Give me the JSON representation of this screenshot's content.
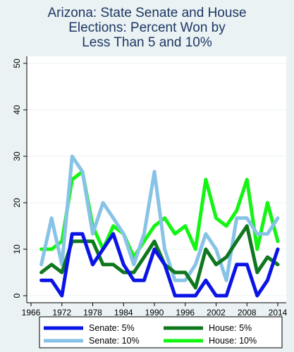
{
  "title_lines": [
    "Arizona: State Senate and House",
    "Elections: Percent Won by",
    "Less Than 5 and 10%"
  ],
  "chart_data": {
    "type": "line",
    "title": "Arizona: State Senate and House Elections: Percent Won by Less Than 5 and 10%",
    "xlabel": "",
    "ylabel": "",
    "xlim": [
      1966,
      2014
    ],
    "ylim": [
      0,
      50
    ],
    "x_ticks": [
      1966,
      1972,
      1978,
      1984,
      1990,
      1996,
      2002,
      2008,
      2014
    ],
    "y_ticks": [
      0,
      10,
      20,
      30,
      40,
      50
    ],
    "grid": "horizontal",
    "legend_position": "bottom",
    "x": [
      1968,
      1970,
      1972,
      1974,
      1976,
      1978,
      1980,
      1982,
      1984,
      1986,
      1988,
      1990,
      1992,
      1994,
      1996,
      1998,
      2000,
      2002,
      2004,
      2006,
      2008,
      2010,
      2012,
      2014
    ],
    "series": [
      {
        "name": "Senate: 5%",
        "color": "#0a14e6",
        "values": [
          3.3,
          3.3,
          0,
          13.3,
          13.3,
          6.7,
          10,
          13.3,
          6.7,
          3.3,
          3.3,
          10,
          6.7,
          0,
          0,
          0,
          3.3,
          0,
          0,
          6.7,
          6.7,
          0,
          3.3,
          10
        ]
      },
      {
        "name": "House: 5%",
        "color": "#0f781e",
        "values": [
          5,
          6.7,
          5,
          11.7,
          11.7,
          11.7,
          6.7,
          6.7,
          5,
          5,
          8.3,
          11.7,
          6.7,
          5,
          5,
          1.7,
          10,
          6.7,
          8.3,
          11.7,
          15,
          5,
          8.3,
          6.7
        ]
      },
      {
        "name": "Senate: 10%",
        "color": "#87c3e6",
        "values": [
          6.7,
          16.7,
          6.7,
          30,
          26.7,
          13.3,
          20,
          16.7,
          13.3,
          6.7,
          13.3,
          26.7,
          10,
          3.3,
          3.3,
          6.7,
          13.3,
          10,
          3.3,
          16.7,
          16.7,
          13.3,
          13.3,
          16.7
        ]
      },
      {
        "name": "House: 10%",
        "color": "#14f514",
        "values": [
          10,
          10,
          11.7,
          25,
          26.7,
          15,
          10,
          15,
          13.3,
          8.3,
          11.7,
          15,
          16.7,
          13.3,
          15,
          10,
          25,
          16.7,
          15,
          18.3,
          25,
          10,
          20,
          11.7
        ]
      }
    ]
  }
}
